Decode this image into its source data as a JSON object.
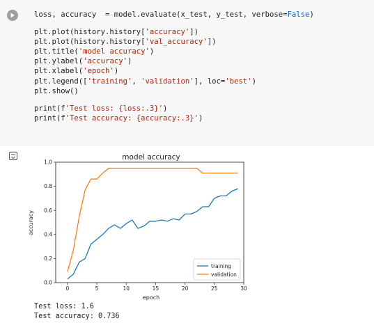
{
  "code_cell": {
    "run_button": "play-icon",
    "line1": "loss, accuracy  = model.evaluate(x_test, y_test, verbose=False)",
    "line3": "plt.plot(history.history['accuracy'])",
    "line4": "plt.plot(history.history['val_accuracy'])",
    "line5": "plt.title('model accuracy')",
    "line6": "plt.ylabel('accuracy')",
    "line7": "plt.xlabel('epoch')",
    "line8": "plt.legend(['training', 'validation'], loc='best')",
    "line9": "plt.show()",
    "line11": "print(f'Test loss: {loss:.3}')",
    "line12": "print(f'Test accuracy: {accuracy:.3}')"
  },
  "output_icon": "output-toggle-icon",
  "chart_data": {
    "type": "line",
    "title": "model accuracy",
    "xlabel": "epoch",
    "ylabel": "accuracy",
    "xlim": [
      -2,
      30
    ],
    "ylim": [
      0,
      1.0
    ],
    "xticks": [
      0,
      5,
      10,
      15,
      20,
      25,
      30
    ],
    "yticks": [
      0.0,
      0.2,
      0.4,
      0.6,
      0.8,
      1.0
    ],
    "legend_loc": "bottom-right",
    "grid": false,
    "series": [
      {
        "name": "training",
        "color": "#1f77b4",
        "x": [
          0,
          1,
          2,
          3,
          4,
          5,
          6,
          7,
          8,
          9,
          10,
          11,
          12,
          13,
          14,
          15,
          16,
          17,
          18,
          19,
          20,
          21,
          22,
          23,
          24,
          25,
          26,
          27,
          28,
          29
        ],
        "values": [
          0.03,
          0.07,
          0.17,
          0.2,
          0.32,
          0.36,
          0.4,
          0.45,
          0.48,
          0.45,
          0.49,
          0.52,
          0.45,
          0.47,
          0.51,
          0.51,
          0.52,
          0.51,
          0.53,
          0.52,
          0.57,
          0.57,
          0.59,
          0.63,
          0.63,
          0.7,
          0.72,
          0.72,
          0.76,
          0.78
        ]
      },
      {
        "name": "validation",
        "color": "#ff7f0e",
        "x": [
          0,
          1,
          2,
          3,
          4,
          5,
          6,
          7,
          8,
          9,
          10,
          11,
          12,
          13,
          14,
          15,
          16,
          17,
          18,
          19,
          20,
          21,
          22,
          23,
          24,
          25,
          26,
          27,
          28,
          29
        ],
        "values": [
          0.09,
          0.27,
          0.55,
          0.77,
          0.86,
          0.86,
          0.91,
          0.95,
          0.95,
          0.95,
          0.95,
          0.95,
          0.95,
          0.95,
          0.95,
          0.95,
          0.95,
          0.95,
          0.95,
          0.95,
          0.95,
          0.95,
          0.95,
          0.91,
          0.91,
          0.91,
          0.91,
          0.91,
          0.91,
          0.91
        ]
      }
    ]
  },
  "output": {
    "test_loss": "Test loss: 1.6",
    "test_accuracy": "Test accuracy: 0.736"
  }
}
